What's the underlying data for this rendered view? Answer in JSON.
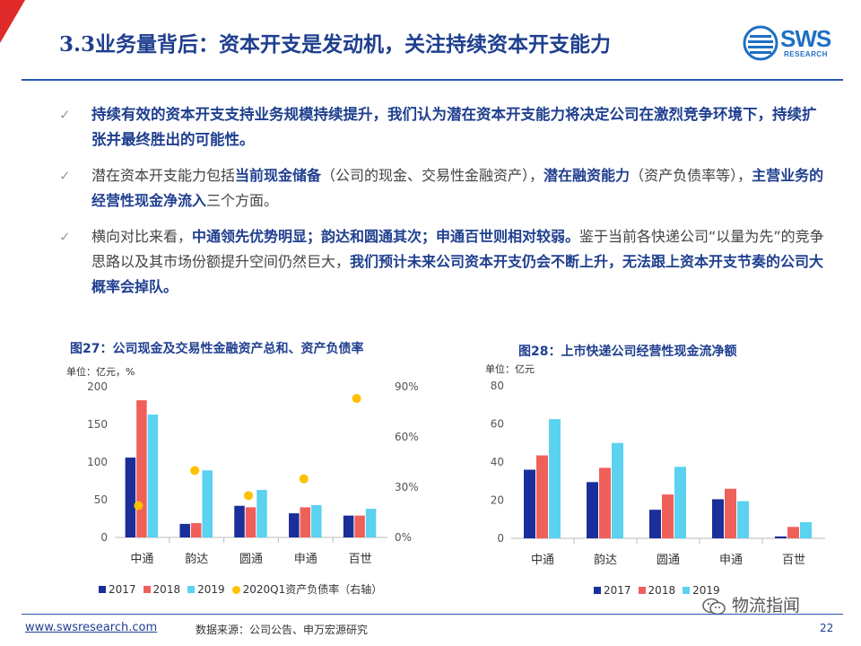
{
  "header": {
    "title": "3.3业务量背后：资本开支是发动机，关注持续资本开支能力",
    "logo_text": "SWS",
    "logo_sub": "RESEARCH"
  },
  "bullets": [
    {
      "parts": [
        {
          "t": "持续有效的资本开支支持业务规模持续提升，我们认为潜在资本开支能力将决定公司在激烈竞争环境下，持续扩张并最终胜出的可能性。",
          "b": true
        }
      ]
    },
    {
      "parts": [
        {
          "t": "潜在资本开支能力包括",
          "b": false
        },
        {
          "t": "当前现金储备",
          "b": true
        },
        {
          "t": "（公司的现金、交易性金融资产），",
          "b": false
        },
        {
          "t": "潜在融资能力",
          "b": true
        },
        {
          "t": "（资产负债率等），",
          "b": false
        },
        {
          "t": "主营业务的经营性现金净流入",
          "b": true
        },
        {
          "t": "三个方面。",
          "b": false
        }
      ]
    },
    {
      "parts": [
        {
          "t": "横向对比来看，",
          "b": false
        },
        {
          "t": "中通领先优势明显；韵达和圆通其次；申通百世则相对较弱。",
          "b": true
        },
        {
          "t": "鉴于当前各快递公司“以量为先”的竞争思路以及其市场份额提升空间仍然巨大，",
          "b": false
        },
        {
          "t": "我们预计未来公司资本开支仍会不断上升，无法跟上资本开支节奏的公司大概率会掉队。",
          "b": true
        }
      ]
    }
  ],
  "chart_data": [
    {
      "type": "bar",
      "title": "图27：公司现金及交易性金融资产总和、资产负债率",
      "unit": "单位：亿元，%",
      "categories": [
        "中通",
        "韵达",
        "圆通",
        "申通",
        "百世"
      ],
      "ylim": [
        0,
        200
      ],
      "yticks": [
        "0",
        "50",
        "100",
        "150",
        "200"
      ],
      "y2lim": [
        0,
        90
      ],
      "y2ticks": [
        "0%",
        "30%",
        "60%",
        "90%"
      ],
      "series": [
        {
          "name": "2017",
          "color": "#1a2f9a",
          "values": [
            106,
            18,
            42,
            32,
            29
          ]
        },
        {
          "name": "2018",
          "color": "#f0605a",
          "values": [
            182,
            19,
            40,
            40,
            29
          ]
        },
        {
          "name": "2019",
          "color": "#5ad2f0",
          "values": [
            163,
            89,
            63,
            43,
            38
          ]
        },
        {
          "name": "2020Q1资产负债率（右轴）",
          "color": "#ffc000",
          "kind": "scatter",
          "axis": "right",
          "values": [
            19,
            40,
            25,
            35,
            83
          ]
        }
      ],
      "legend_placement": "bottom"
    },
    {
      "type": "bar",
      "title": "图28：上市快递公司经营性现金流净额",
      "unit": "单位：亿元",
      "categories": [
        "中通",
        "韵达",
        "圆通",
        "申通",
        "百世"
      ],
      "ylim": [
        0,
        80
      ],
      "yticks": [
        "0",
        "20",
        "40",
        "60",
        "80"
      ],
      "series": [
        {
          "name": "2017",
          "color": "#1a2f9a",
          "values": [
            36,
            29.5,
            15,
            20.5,
            1
          ]
        },
        {
          "name": "2018",
          "color": "#f0605a",
          "values": [
            43.5,
            37,
            23,
            26,
            6
          ]
        },
        {
          "name": "2019",
          "color": "#5ad2f0",
          "values": [
            62.5,
            50,
            37.5,
            19.5,
            8.5
          ]
        }
      ],
      "legend_placement": "bottom"
    }
  ],
  "footer": {
    "url": "www.swsresearch.com",
    "source": "数据来源：公司公告、申万宏源研究",
    "watermark": "物流指闻",
    "page": "22"
  }
}
